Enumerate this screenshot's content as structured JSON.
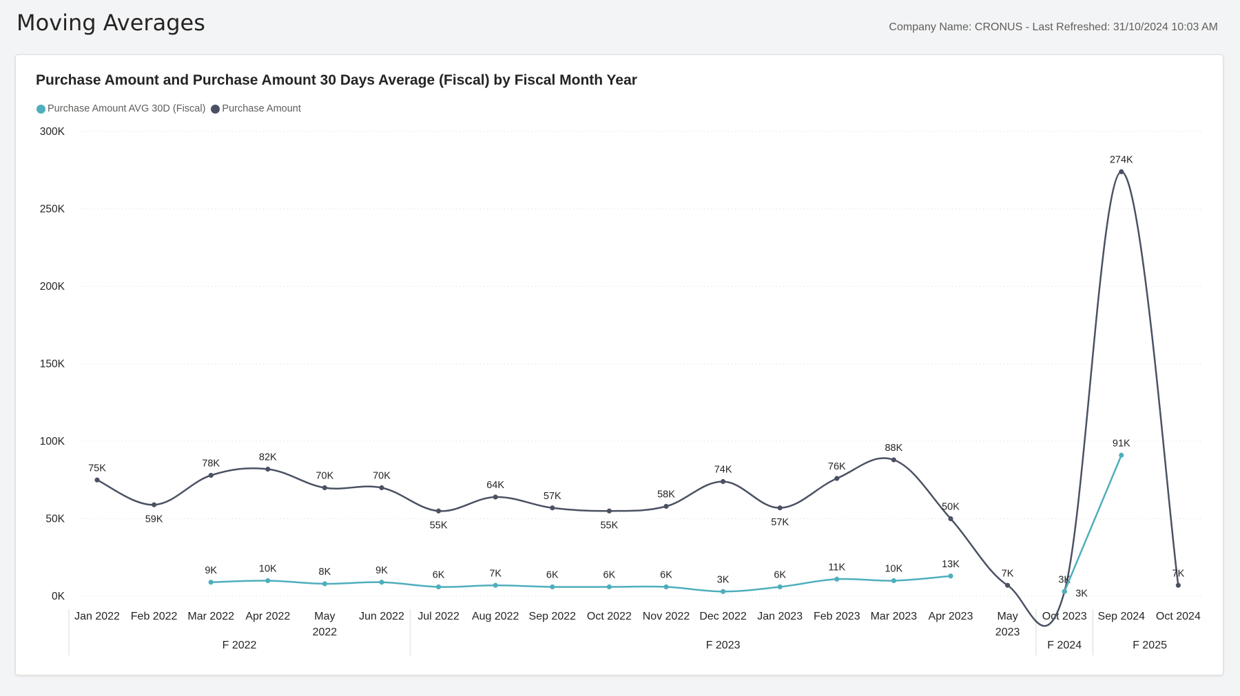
{
  "header": {
    "title": "Moving Averages",
    "meta": "Company Name: CRONUS - Last Refreshed: 31/10/2024 10:03 AM"
  },
  "colors": {
    "avg": "#4eaebc",
    "amount": "#4a5163",
    "grid": "#d9d9d9",
    "axis_text": "#252423",
    "label_text": "#252423"
  },
  "chart_data": {
    "type": "line",
    "title": "Purchase Amount and Purchase Amount 30 Days Average (Fiscal) by Fiscal Month Year",
    "legend_position": "top-left",
    "grid": true,
    "ylim": [
      0,
      300000
    ],
    "y_ticks": [
      "0K",
      "50K",
      "100K",
      "150K",
      "200K",
      "250K",
      "300K"
    ],
    "categories": [
      [
        "Jan 2022"
      ],
      [
        "Feb 2022"
      ],
      [
        "Mar 2022"
      ],
      [
        "Apr 2022"
      ],
      [
        "May",
        "2022"
      ],
      [
        "Jun 2022"
      ],
      [
        "Jul 2022"
      ],
      [
        "Aug 2022"
      ],
      [
        "Sep 2022"
      ],
      [
        "Oct 2022"
      ],
      [
        "Nov 2022"
      ],
      [
        "Dec 2022"
      ],
      [
        "Jan 2023"
      ],
      [
        "Feb 2023"
      ],
      [
        "Mar 2023"
      ],
      [
        "Apr 2023"
      ],
      [
        "May",
        "2023"
      ],
      [
        "Oct 2023"
      ],
      [
        "Sep 2024"
      ],
      [
        "Oct 2024"
      ]
    ],
    "fiscal_groups": [
      {
        "label": "F 2022",
        "start": 0,
        "end": 5
      },
      {
        "label": "F 2023",
        "start": 6,
        "end": 16
      },
      {
        "label": "F 2024",
        "start": 17,
        "end": 17
      },
      {
        "label": "F 2025",
        "start": 18,
        "end": 19
      }
    ],
    "series": [
      {
        "name": "Purchase Amount AVG 30D (Fiscal)",
        "color_key": "avg",
        "values": [
          null,
          null,
          9000,
          10000,
          8000,
          9000,
          6000,
          7000,
          6000,
          6000,
          6000,
          3000,
          6000,
          11000,
          10000,
          13000,
          null,
          3000,
          91000,
          null
        ],
        "labels": [
          null,
          null,
          "9K",
          "10K",
          "8K",
          "9K",
          "6K",
          "7K",
          "6K",
          "6K",
          "6K",
          "3K",
          "6K",
          "11K",
          "10K",
          "13K",
          null,
          "3K",
          "91K",
          null
        ],
        "label_pos": [
          null,
          null,
          "above",
          "above",
          "above",
          "above",
          "above",
          "above",
          "above",
          "above",
          "above",
          "above",
          "above",
          "above",
          "above",
          "above",
          null,
          "below-right",
          "above",
          null
        ]
      },
      {
        "name": "Purchase Amount",
        "color_key": "amount",
        "values": [
          75000,
          59000,
          78000,
          82000,
          70000,
          70000,
          55000,
          64000,
          57000,
          55000,
          58000,
          74000,
          57000,
          76000,
          88000,
          50000,
          7000,
          3000,
          274000,
          7000
        ],
        "labels": [
          "75K",
          "59K",
          "78K",
          "82K",
          "70K",
          "70K",
          "55K",
          "64K",
          "57K",
          "55K",
          "58K",
          "74K",
          "57K",
          "76K",
          "88K",
          "50K",
          "7K",
          "3K",
          "274K",
          "7K"
        ],
        "label_pos": [
          "above",
          "below",
          "above",
          "above",
          "above",
          "above",
          "below",
          "above",
          "above",
          "below",
          "above",
          "above",
          "below",
          "above",
          "above",
          "above",
          "above",
          "above",
          "above",
          "above"
        ]
      }
    ]
  }
}
